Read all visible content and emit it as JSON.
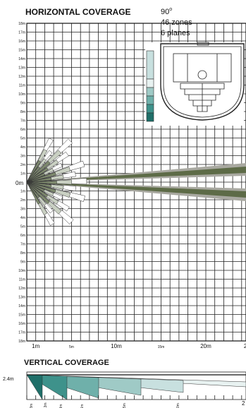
{
  "horizontal": {
    "title": "HORIZONTAL COVERAGE",
    "y_labels": [
      "18m",
      "17m",
      "16m",
      "15m",
      "14m",
      "13m",
      "12m",
      "11m",
      "10m",
      "9m",
      "8m",
      "7m",
      "6m",
      "5m",
      "4m",
      "3m",
      "2m",
      "1m",
      "0m",
      "1m",
      "2m",
      "3m",
      "4m",
      "5m",
      "6m",
      "7m",
      "8m",
      "9m",
      "10m",
      "11m",
      "12m",
      "13m",
      "14m",
      "15m",
      "16m",
      "17m",
      "18m"
    ],
    "x_labels": [
      "1m",
      "5m",
      "10m",
      "15m",
      "20m",
      "2"
    ]
  },
  "specs": {
    "angle": "90",
    "angle_unit": "o",
    "zones": "46 zones",
    "planes": "6 planes"
  },
  "vertical": {
    "title": "VERTICAL COVERAGE",
    "height_label": "2.4m",
    "distance_labels": [
      ".8m",
      "1.3m",
      "3m",
      "6m",
      "15m",
      "20m"
    ],
    "x_end": "2"
  }
}
